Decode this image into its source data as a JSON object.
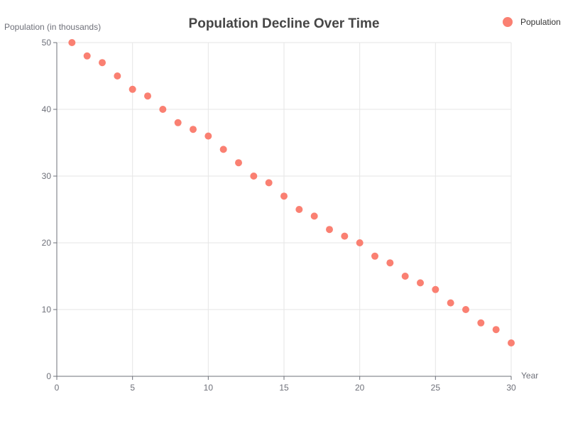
{
  "chart_data": {
    "type": "scatter",
    "title": "Population Decline Over Time",
    "xlabel": "Year",
    "ylabel": "Population (in thousands)",
    "xlim": [
      0,
      30
    ],
    "ylim": [
      0,
      50
    ],
    "x_ticks": [
      0,
      5,
      10,
      15,
      20,
      25,
      30
    ],
    "y_ticks": [
      0,
      10,
      20,
      30,
      40,
      50
    ],
    "grid": true,
    "legend_position": "top-right",
    "series": [
      {
        "name": "Population",
        "color": "#fa8072",
        "points": [
          [
            1,
            50
          ],
          [
            2,
            48
          ],
          [
            3,
            47
          ],
          [
            4,
            45
          ],
          [
            5,
            43
          ],
          [
            6,
            42
          ],
          [
            7,
            40
          ],
          [
            8,
            38
          ],
          [
            9,
            37
          ],
          [
            10,
            36
          ],
          [
            11,
            34
          ],
          [
            12,
            32
          ],
          [
            13,
            30
          ],
          [
            14,
            29
          ],
          [
            15,
            27
          ],
          [
            16,
            25
          ],
          [
            17,
            24
          ],
          [
            18,
            22
          ],
          [
            19,
            21
          ],
          [
            20,
            20
          ],
          [
            21,
            18
          ],
          [
            22,
            17
          ],
          [
            23,
            15
          ],
          [
            24,
            14
          ],
          [
            25,
            13
          ],
          [
            26,
            11
          ],
          [
            27,
            10
          ],
          [
            28,
            8
          ],
          [
            29,
            7
          ],
          [
            30,
            5
          ]
        ]
      }
    ]
  }
}
